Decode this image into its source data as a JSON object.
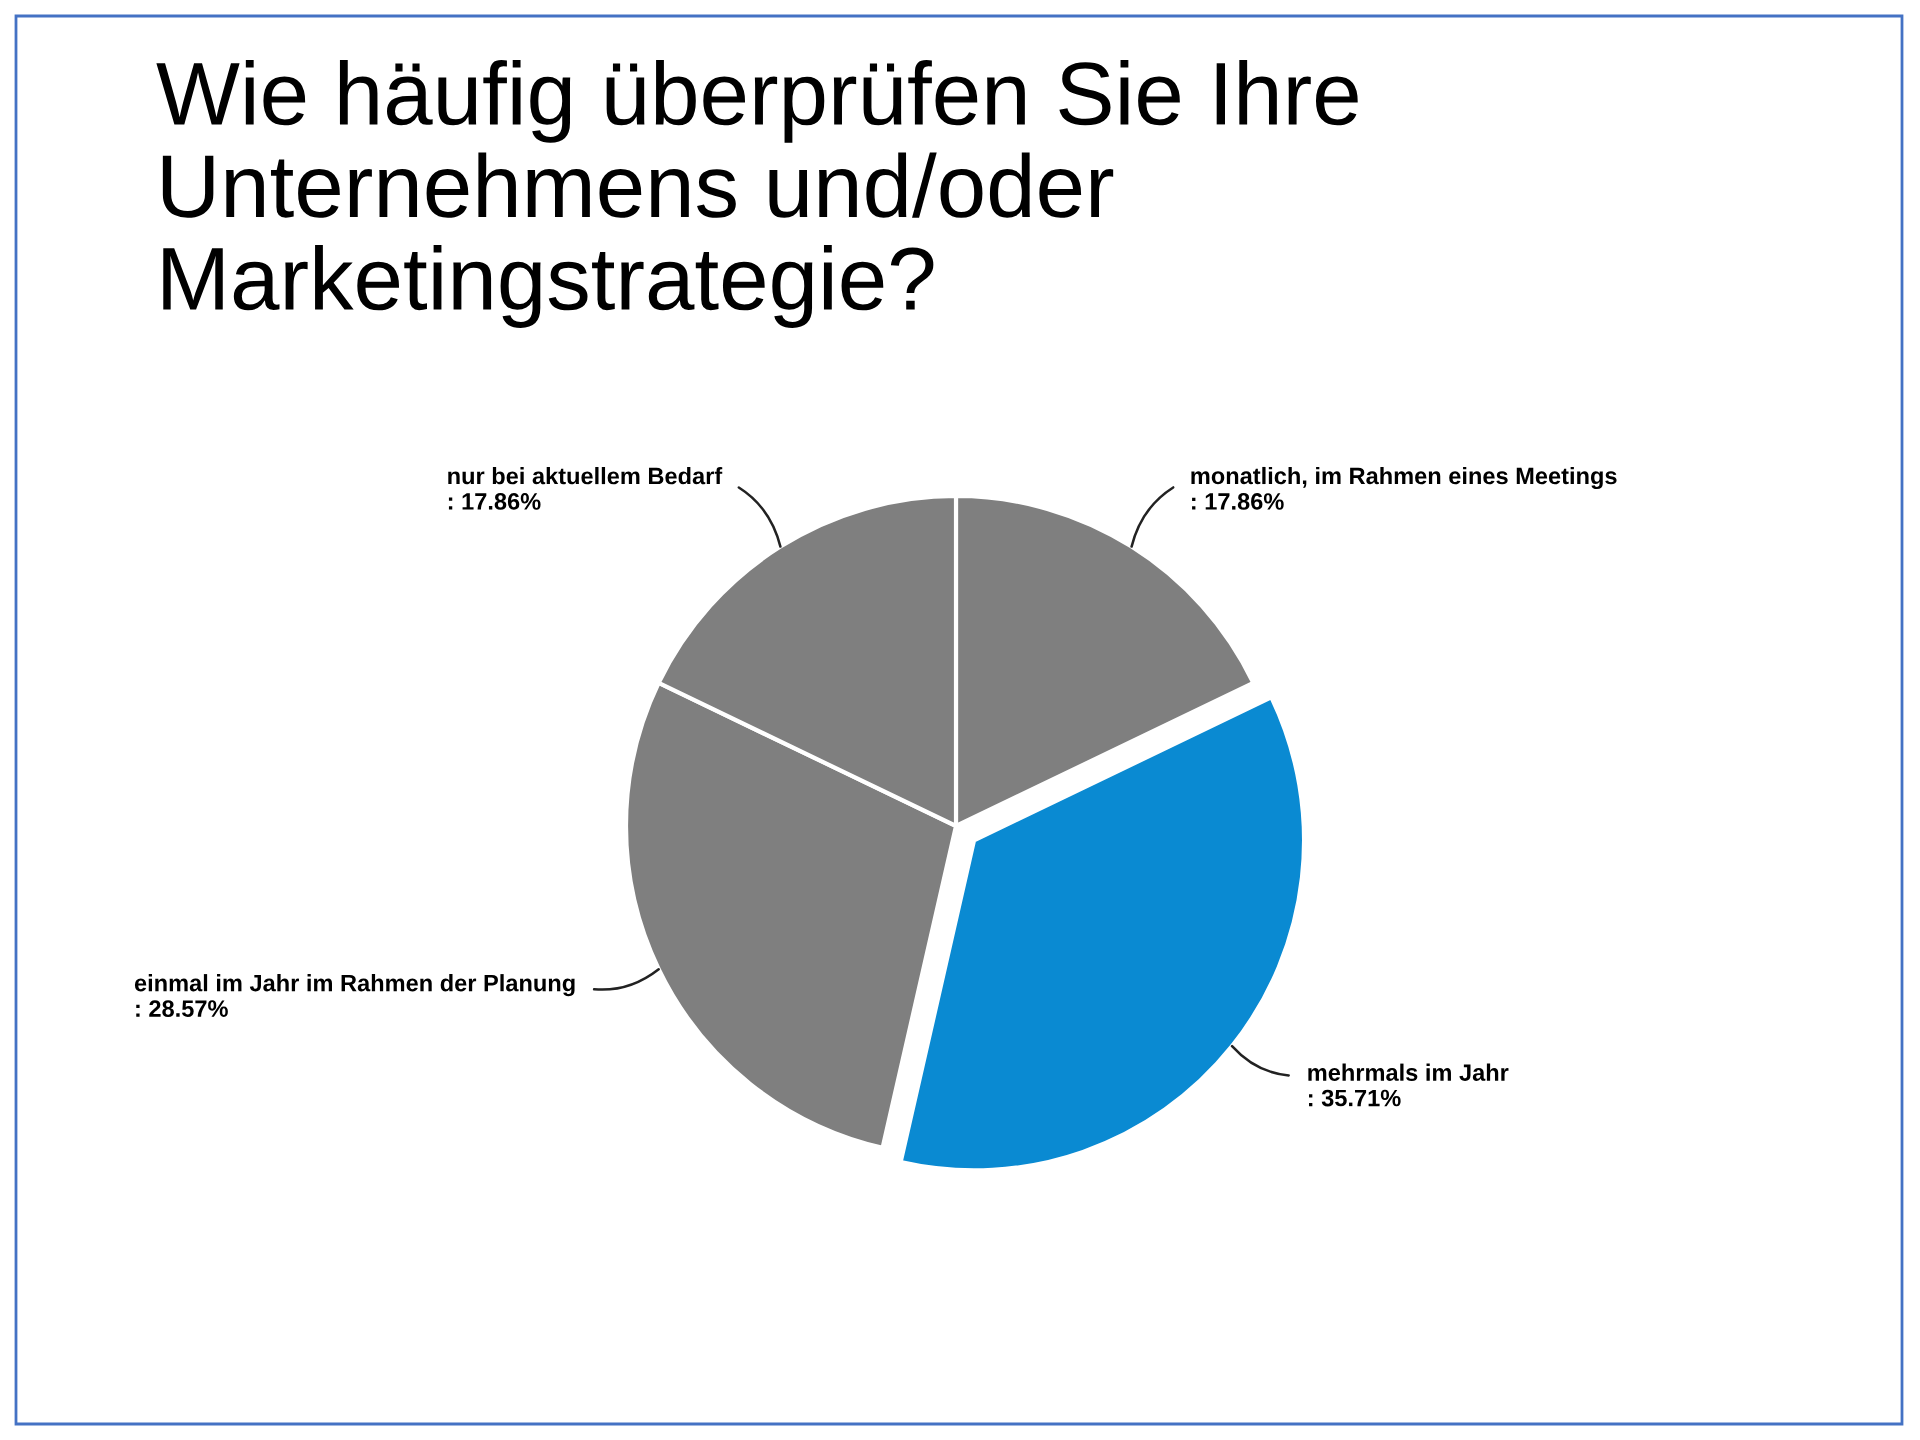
{
  "chart_data": {
    "type": "pie",
    "title": "Wie häufig überprüfen Sie Ihre\nUnternehmens und/oder\nMarketingstrategie?",
    "categories": [
      "monatlich, im Rahmen eines Meetings",
      "mehrmals im Jahr",
      "einmal im Jahr im Rahmen der Planung",
      "nur bei aktuellem Bedarf"
    ],
    "values": [
      17.86,
      35.71,
      28.57,
      17.86
    ],
    "value_labels": [
      ": 17.86%",
      ": 35.71%",
      ": 28.57%",
      ": 17.86%"
    ],
    "colors": [
      "#7f7f7f",
      "#0a8ad2",
      "#7f7f7f",
      "#7f7f7f"
    ]
  }
}
